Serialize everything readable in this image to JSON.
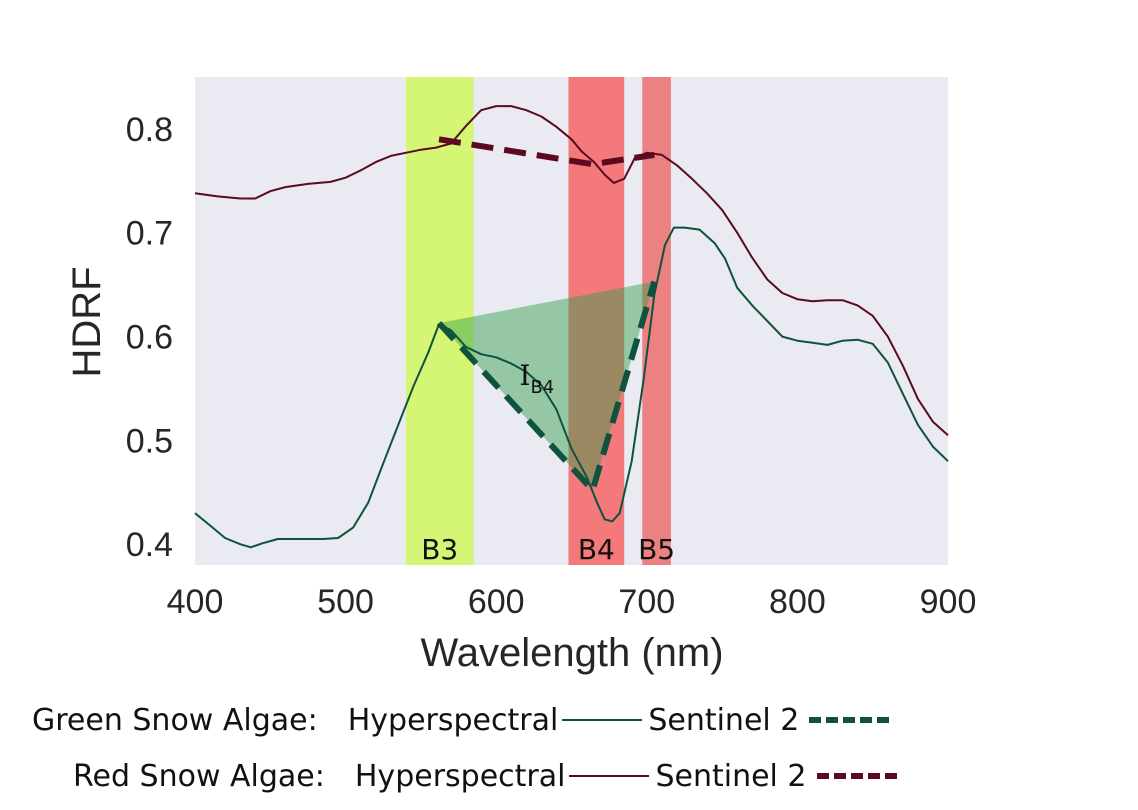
{
  "chart_data": {
    "type": "line",
    "xlabel": "Wavelength (nm)",
    "ylabel": "HDRF",
    "xlim": [
      400,
      900
    ],
    "ylim": [
      0.38,
      0.85
    ],
    "xticks": [
      400,
      500,
      600,
      700,
      800,
      900
    ],
    "yticks": [
      0.4,
      0.5,
      0.6,
      0.7,
      0.8
    ],
    "grid": false,
    "background": "#eaeaf2",
    "bands": [
      {
        "name": "B3",
        "range": [
          540,
          585
        ],
        "color": "#d4f56e"
      },
      {
        "name": "B4",
        "range": [
          648,
          685
        ],
        "color": "#f47373"
      },
      {
        "name": "B5",
        "range": [
          697,
          716
        ],
        "color": "#ec7b7b"
      }
    ],
    "series": [
      {
        "color": "#0f523d",
        "style": "solid",
        "points": [
          [
            400,
            0.43
          ],
          [
            410,
            0.418
          ],
          [
            420,
            0.406
          ],
          [
            430,
            0.4
          ],
          [
            437,
            0.397
          ],
          [
            445,
            0.401
          ],
          [
            455,
            0.405
          ],
          [
            470,
            0.405
          ],
          [
            485,
            0.405
          ],
          [
            495,
            0.406
          ],
          [
            505,
            0.416
          ],
          [
            515,
            0.44
          ],
          [
            525,
            0.478
          ],
          [
            535,
            0.515
          ],
          [
            545,
            0.552
          ],
          [
            555,
            0.585
          ],
          [
            562,
            0.612
          ],
          [
            570,
            0.606
          ],
          [
            580,
            0.59
          ],
          [
            590,
            0.583
          ],
          [
            600,
            0.58
          ],
          [
            610,
            0.574
          ],
          [
            620,
            0.566
          ],
          [
            630,
            0.553
          ],
          [
            640,
            0.53
          ],
          [
            650,
            0.492
          ],
          [
            660,
            0.465
          ],
          [
            667,
            0.44
          ],
          [
            672,
            0.424
          ],
          [
            677,
            0.422
          ],
          [
            682,
            0.43
          ],
          [
            690,
            0.48
          ],
          [
            698,
            0.56
          ],
          [
            705,
            0.64
          ],
          [
            712,
            0.688
          ],
          [
            718,
            0.705
          ],
          [
            725,
            0.705
          ],
          [
            735,
            0.703
          ],
          [
            745,
            0.69
          ],
          [
            752,
            0.675
          ],
          [
            760,
            0.647
          ],
          [
            770,
            0.63
          ],
          [
            780,
            0.615
          ],
          [
            790,
            0.6
          ],
          [
            800,
            0.596
          ],
          [
            810,
            0.594
          ],
          [
            820,
            0.592
          ],
          [
            830,
            0.596
          ],
          [
            840,
            0.597
          ],
          [
            850,
            0.593
          ],
          [
            860,
            0.575
          ],
          [
            870,
            0.545
          ],
          [
            880,
            0.515
          ],
          [
            890,
            0.494
          ],
          [
            900,
            0.48
          ]
        ]
      },
      {
        "color": "#5c0a1f",
        "style": "solid",
        "points": [
          [
            400,
            0.738
          ],
          [
            415,
            0.735
          ],
          [
            430,
            0.733
          ],
          [
            440,
            0.733
          ],
          [
            450,
            0.74
          ],
          [
            460,
            0.744
          ],
          [
            475,
            0.747
          ],
          [
            490,
            0.749
          ],
          [
            500,
            0.753
          ],
          [
            510,
            0.76
          ],
          [
            520,
            0.768
          ],
          [
            530,
            0.774
          ],
          [
            540,
            0.777
          ],
          [
            550,
            0.78
          ],
          [
            560,
            0.782
          ],
          [
            570,
            0.786
          ],
          [
            580,
            0.803
          ],
          [
            590,
            0.818
          ],
          [
            600,
            0.822
          ],
          [
            610,
            0.822
          ],
          [
            620,
            0.818
          ],
          [
            630,
            0.812
          ],
          [
            640,
            0.802
          ],
          [
            650,
            0.79
          ],
          [
            657,
            0.778
          ],
          [
            665,
            0.768
          ],
          [
            672,
            0.756
          ],
          [
            678,
            0.748
          ],
          [
            685,
            0.752
          ],
          [
            692,
            0.772
          ],
          [
            700,
            0.777
          ],
          [
            710,
            0.775
          ],
          [
            720,
            0.765
          ],
          [
            730,
            0.752
          ],
          [
            740,
            0.738
          ],
          [
            750,
            0.722
          ],
          [
            760,
            0.7
          ],
          [
            770,
            0.676
          ],
          [
            780,
            0.655
          ],
          [
            790,
            0.642
          ],
          [
            800,
            0.636
          ],
          [
            810,
            0.634
          ],
          [
            820,
            0.635
          ],
          [
            830,
            0.635
          ],
          [
            840,
            0.63
          ],
          [
            850,
            0.62
          ],
          [
            860,
            0.6
          ],
          [
            870,
            0.572
          ],
          [
            880,
            0.54
          ],
          [
            890,
            0.518
          ],
          [
            900,
            0.505
          ]
        ]
      },
      {
        "name": "Sentinel 2",
        "color": "#0f523d",
        "style": "dashed",
        "points": [
          [
            562,
            0.613
          ],
          [
            664,
            0.452
          ],
          [
            705,
            0.653
          ]
        ]
      },
      {
        "name": "Sentinel 2",
        "color": "#5c0a1f",
        "style": "dashed",
        "points": [
          [
            562,
            0.79
          ],
          [
            664,
            0.766
          ],
          [
            705,
            0.775
          ]
        ]
      }
    ],
    "triangle": {
      "points": [
        [
          562,
          0.613
        ],
        [
          664,
          0.452
        ],
        [
          705,
          0.653
        ]
      ],
      "color": "#2f9e48",
      "opacity": 0.45
    },
    "annotation": {
      "text": "I",
      "subscript": "B4",
      "x": 630,
      "y": 0.565
    }
  },
  "legend": {
    "rows": [
      {
        "label": "Green Snow Algae:",
        "hyper_label": "Hyperspectral",
        "s2_label": "Sentinel 2",
        "color": "#0f523d"
      },
      {
        "label": "Red Snow Algae:",
        "hyper_label": "Hyperspectral",
        "s2_label": "Sentinel 2",
        "color": "#5c0a1f"
      }
    ]
  }
}
